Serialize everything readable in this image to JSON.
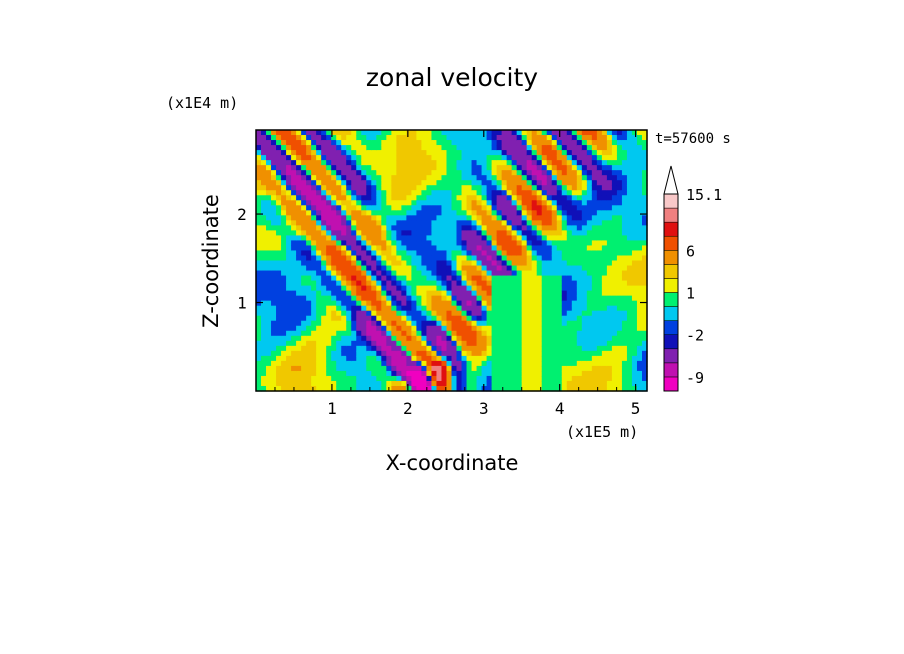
{
  "chart_data": {
    "type": "heatmap",
    "title": "zonal velocity",
    "xlabel": "X-coordinate",
    "ylabel": "Z-coordinate",
    "x_unit": "(x1E5 m)",
    "y_unit": "(x1E4 m)",
    "time_label": "t=57600 s",
    "xlim": [
      0,
      5.15
    ],
    "ylim": [
      0,
      2.95
    ],
    "x_ticks": [
      "1",
      "2",
      "3",
      "4",
      "5"
    ],
    "x_tick_values": [
      1,
      2,
      3,
      4,
      5
    ],
    "y_ticks": [
      "1",
      "2"
    ],
    "y_tick_values": [
      1,
      2
    ],
    "colorbar": {
      "levels": [
        -12,
        -9,
        -6,
        -3,
        -2,
        -1,
        0,
        1,
        2,
        3,
        6,
        9,
        12,
        15.1
      ],
      "tick_labels": [
        "15.1",
        "6",
        "1",
        "-2",
        "-9"
      ],
      "tick_values": [
        15.1,
        6,
        1,
        -2,
        -9
      ],
      "colors": [
        "#f000c0",
        "#c010b0",
        "#8020b0",
        "#1010b8",
        "#0040e0",
        "#00c8f0",
        "#00f070",
        "#f0f000",
        "#f0c800",
        "#f09000",
        "#f05000",
        "#e01010",
        "#f08080",
        "#f8c8c8"
      ],
      "extend_max": true
    }
  }
}
